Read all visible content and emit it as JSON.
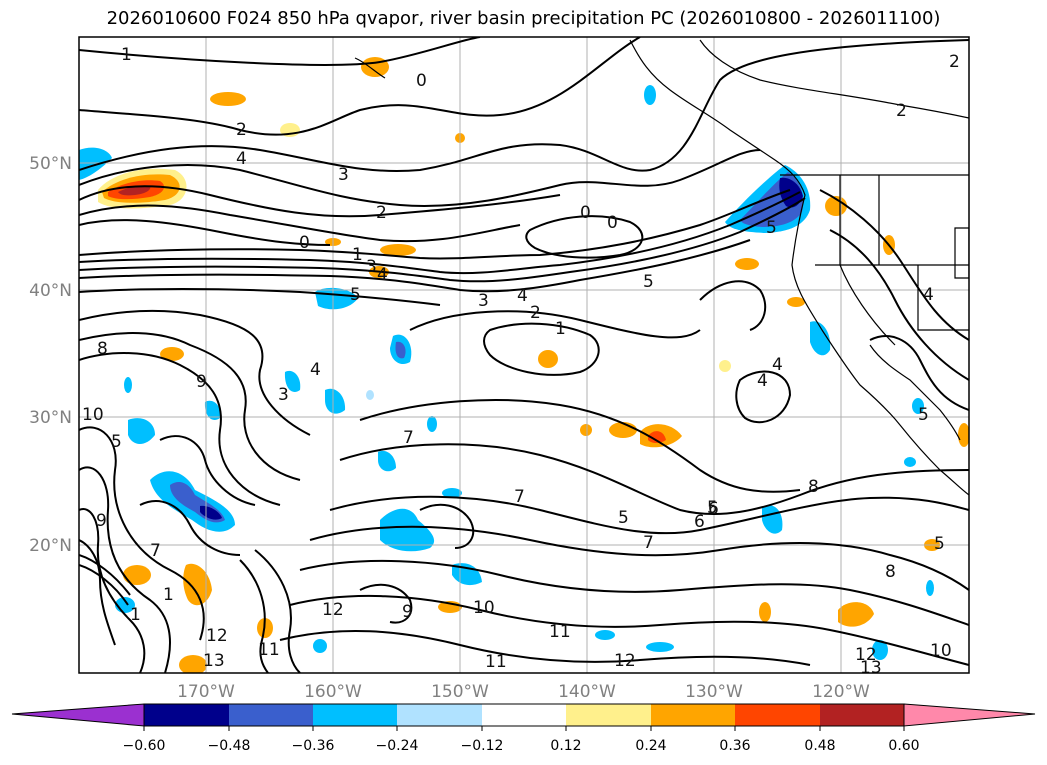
{
  "title": "2026010600 F024 850 hPa qvapor, river basin precipitation PC (2026010800 - 2026011100)",
  "map": {
    "lat_labels": [
      "50°N",
      "40°N",
      "30°N",
      "20°N"
    ],
    "lon_labels": [
      "170°W",
      "160°W",
      "150°W",
      "140°W",
      "130°W",
      "120°W"
    ],
    "contour_labels": [
      "1",
      "0",
      "2",
      "2",
      "4",
      "3",
      "2",
      "0",
      "0",
      "0",
      "1",
      "3",
      "4",
      "5",
      "3",
      "4",
      "2",
      "1",
      "5",
      "5",
      "4",
      "4",
      "8",
      "9",
      "3",
      "7",
      "7",
      "10",
      "5",
      "6",
      "7",
      "9",
      "11",
      "12",
      "12",
      "13",
      "11",
      "10",
      "9",
      "5",
      "6",
      "5",
      "7",
      "8",
      "8",
      "5",
      "12",
      "11",
      "12",
      "13",
      "10",
      "1",
      "2",
      "1",
      "4",
      "5",
      "4"
    ],
    "colors": {
      "purple": "#9b30d0",
      "navy": "#00008b",
      "royal": "#3a5fcd",
      "deepsky": "#00bfff",
      "lightblue": "#b0e2ff",
      "white": "#ffffff",
      "yellow": "#fff08c",
      "orange": "#ffa500",
      "orangered": "#ff4500",
      "firebrick": "#b22222",
      "pink": "#ff88aa"
    }
  },
  "colorbar": {
    "labels": [
      "−0.60",
      "−0.48",
      "−0.36",
      "−0.24",
      "−0.12",
      "0.12",
      "0.24",
      "0.36",
      "0.48",
      "0.60"
    ],
    "segments": [
      "#9b30d0",
      "#00008b",
      "#3a5fcd",
      "#00bfff",
      "#b0e2ff",
      "#ffffff",
      "#fff08c",
      "#ffa500",
      "#ff4500",
      "#b22222",
      "#ff88aa"
    ]
  }
}
